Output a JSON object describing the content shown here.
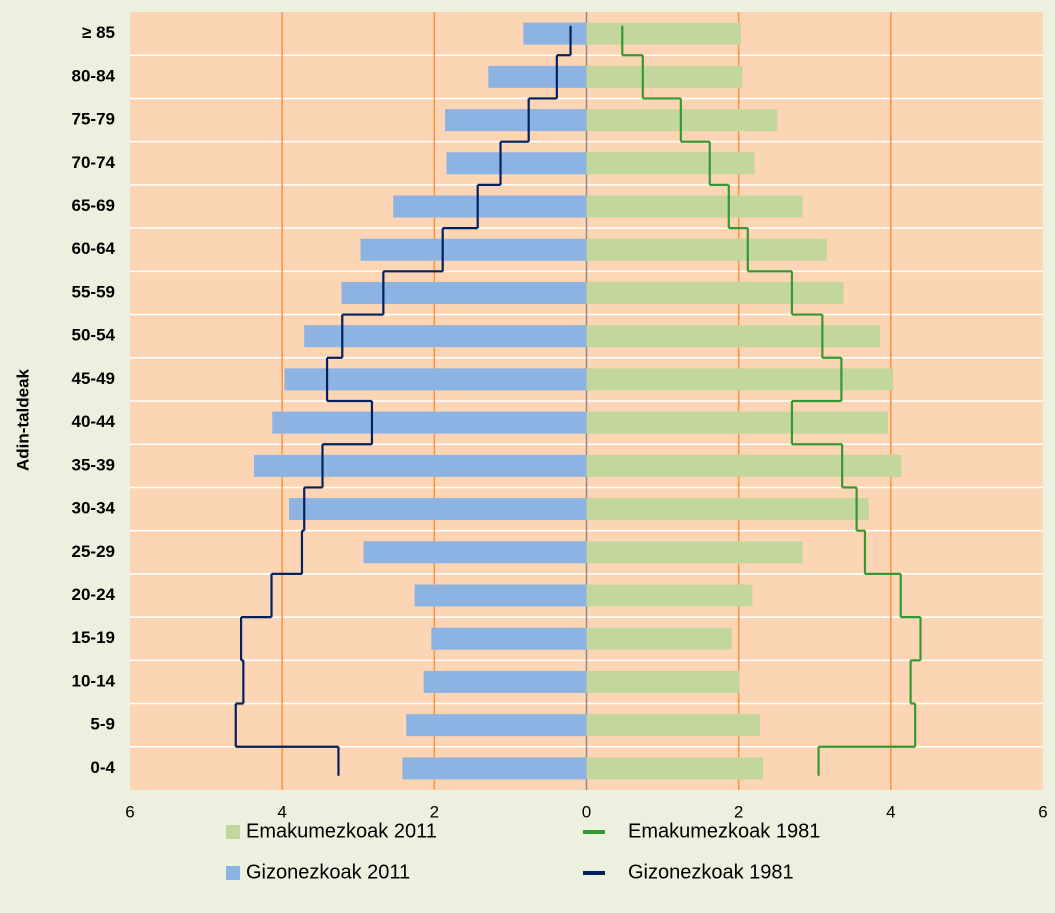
{
  "chart_data": {
    "type": "bar",
    "orientation": "horizontal",
    "y_label": "Adin-taldeak",
    "categories": [
      "0-4",
      "5-9",
      "10-14",
      "15-19",
      "20-24",
      "25-29",
      "30-34",
      "35-39",
      "40-44",
      "45-49",
      "50-54",
      "55-59",
      "60-64",
      "65-69",
      "70-74",
      "75-79",
      "80-84",
      "≥ 85"
    ],
    "series": [
      {
        "name": "Emakumezkoak 2011",
        "type": "bar",
        "color": "#c3d69b",
        "values": [
          2.32,
          2.28,
          2.01,
          1.91,
          2.18,
          2.84,
          3.71,
          4.14,
          3.96,
          4.03,
          3.86,
          3.38,
          3.16,
          2.84,
          2.21,
          2.51,
          2.05,
          2.03
        ]
      },
      {
        "name": "Emakumezkoak 1981",
        "type": "line",
        "color": "#339933",
        "values": [
          3.05,
          4.32,
          4.26,
          4.39,
          4.13,
          3.66,
          3.55,
          3.36,
          2.7,
          3.35,
          3.1,
          2.7,
          2.12,
          1.87,
          1.62,
          1.24,
          0.74,
          0.47
        ]
      },
      {
        "name": "Gizonezkoak 2011",
        "type": "bar",
        "color": "#8db3e2",
        "values": [
          -2.42,
          -2.37,
          -2.14,
          -2.04,
          -2.26,
          -2.93,
          -3.91,
          -4.37,
          -4.13,
          -3.97,
          -3.71,
          -3.22,
          -2.97,
          -2.54,
          -1.84,
          -1.86,
          -1.29,
          -0.83
        ]
      },
      {
        "name": "Gizonezkoak 1981",
        "type": "line",
        "color": "#002060",
        "values": [
          -3.26,
          -4.61,
          -4.51,
          -4.54,
          -4.14,
          -3.74,
          -3.71,
          -3.47,
          -2.82,
          -3.41,
          -3.21,
          -2.67,
          -1.89,
          -1.43,
          -1.13,
          -0.76,
          -0.39,
          -0.21
        ]
      }
    ],
    "xlim": [
      -6,
      6
    ],
    "xticks": [
      {
        "value": -6,
        "label": "6"
      },
      {
        "value": -4,
        "label": "4"
      },
      {
        "value": -2,
        "label": "2"
      },
      0,
      2,
      4,
      6
    ],
    "grid": true,
    "legend": "bottom"
  }
}
